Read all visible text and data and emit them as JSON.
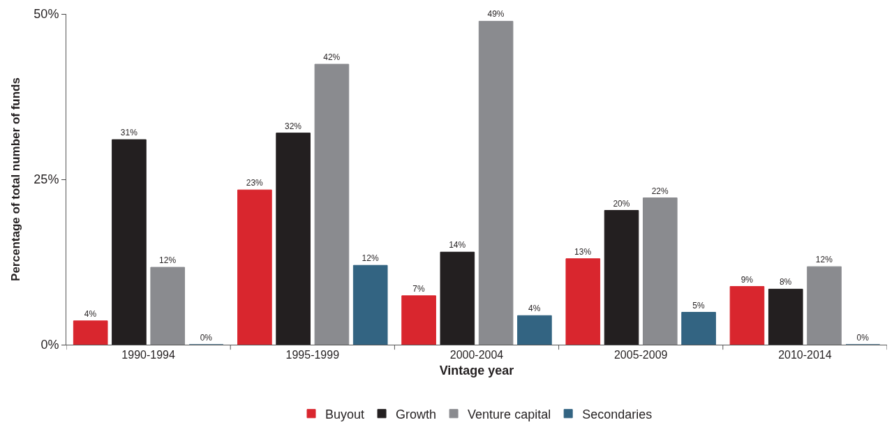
{
  "chart_data": {
    "type": "bar",
    "xlabel": "Vintage year",
    "ylabel": "Percentage of total number of funds",
    "categories": [
      "1990-1994",
      "1995-1999",
      "2000-2004",
      "2005-2009",
      "2010-2014"
    ],
    "series": [
      {
        "name": "Buyout",
        "color": "#d9262e",
        "values": [
          3.6,
          23.4,
          7.4,
          13,
          8.8
        ],
        "value_labels": [
          "4%",
          "23%",
          "7%",
          "13%",
          "9%"
        ]
      },
      {
        "name": "Growth",
        "color": "#231f20",
        "values": [
          31,
          32,
          14,
          20.3,
          8.4
        ],
        "value_labels": [
          "31%",
          "32%",
          "14%",
          "20%",
          "8%"
        ]
      },
      {
        "name": "Venture capital",
        "color": "#8a8b8f",
        "values": [
          11.7,
          42.4,
          48.9,
          22.2,
          11.8
        ],
        "value_labels": [
          "12%",
          "42%",
          "49%",
          "22%",
          "12%"
        ]
      },
      {
        "name": "Secondaries",
        "color": "#336482",
        "values": [
          0,
          12,
          4.4,
          4.9,
          0
        ],
        "value_labels": [
          "0%",
          "12%",
          "4%",
          "5%",
          "0%"
        ]
      }
    ],
    "ylim": [
      0,
      50
    ],
    "yticks": [
      {
        "value": 0,
        "label": "0%"
      },
      {
        "value": 25,
        "label": "25%"
      },
      {
        "value": 50,
        "label": "50%"
      }
    ],
    "legend": "bottom"
  }
}
